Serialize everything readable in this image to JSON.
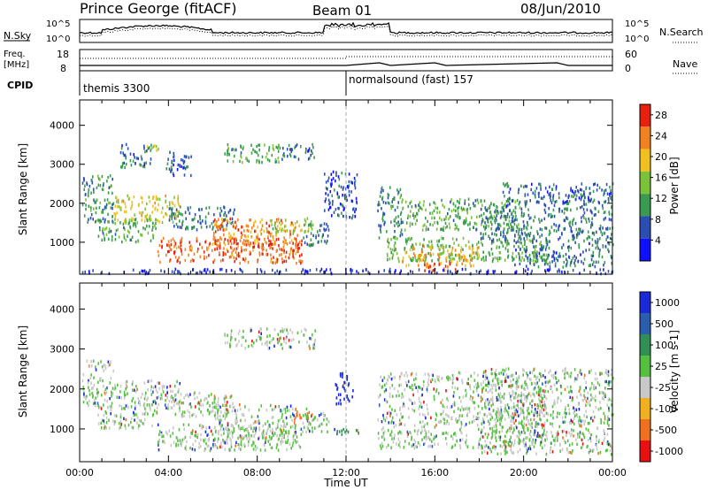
{
  "header": {
    "station": "Prince George (fitACF)",
    "beam": "Beam 01",
    "date": "08/Jun/2010"
  },
  "strip": {
    "nsky_label": "N.Sky",
    "nsky_ticks": [
      "10^5",
      "10^0"
    ],
    "nsky_right_ticks": [
      "10^5",
      "10^0"
    ],
    "nsearch_label": "N.Search",
    "freq_label_1": "Freq.",
    "freq_label_2": "[MHz]",
    "freq_ticks": [
      "18",
      "8"
    ],
    "nave_label": "Nave",
    "nave_ticks": [
      "60",
      "0"
    ],
    "cpid_label": "CPID",
    "cpid_1": "themis 3300",
    "cpid_2": "normalsound (fast) 157",
    "cpid_2_start_hour": 12.0
  },
  "chart_data": [
    {
      "type": "heatmap",
      "name": "power-panel",
      "ylabel": "Slant Range [km]",
      "xlim": [
        0,
        24
      ],
      "ylim": [
        180,
        4650
      ],
      "yticks": [
        1000,
        2000,
        3000,
        4000
      ],
      "colorbar_label": "Power [dB]",
      "colorbar_ticks": [
        "4",
        "8",
        "12",
        "16",
        "20",
        "24",
        "28"
      ],
      "colorbar_colors": [
        "#1010ff",
        "#2a4fb0",
        "#3a9a50",
        "#7ac23a",
        "#f0c020",
        "#f08020",
        "#e82010"
      ],
      "colorbar_range": [
        0,
        30
      ],
      "regions": [
        {
          "t0": 0.1,
          "t1": 1.5,
          "r0": 1500,
          "r1": 2700,
          "value": 10
        },
        {
          "t0": 1.5,
          "t1": 4.5,
          "r0": 1500,
          "r1": 2200,
          "value": 18
        },
        {
          "t0": 0.8,
          "t1": 3.5,
          "r0": 1000,
          "r1": 1600,
          "value": 12
        },
        {
          "t0": 1.8,
          "t1": 3.2,
          "r0": 2900,
          "r1": 3500,
          "value": 8
        },
        {
          "t0": 3.0,
          "t1": 3.6,
          "r0": 3300,
          "r1": 3500,
          "value": 17
        },
        {
          "t0": 3.8,
          "t1": 5.0,
          "r0": 2700,
          "r1": 3300,
          "value": 6
        },
        {
          "t0": 4.0,
          "t1": 7.0,
          "r0": 1300,
          "r1": 1900,
          "value": 9
        },
        {
          "t0": 3.5,
          "t1": 10.0,
          "r0": 450,
          "r1": 1100,
          "value": 25
        },
        {
          "t0": 6.0,
          "t1": 9.8,
          "r0": 700,
          "r1": 1600,
          "value": 23
        },
        {
          "t0": 8.5,
          "t1": 10.5,
          "r0": 1200,
          "r1": 1600,
          "value": 16
        },
        {
          "t0": 10.0,
          "t1": 11.2,
          "r0": 900,
          "r1": 1500,
          "value": 8
        },
        {
          "t0": 6.5,
          "t1": 9.0,
          "r0": 3000,
          "r1": 3500,
          "value": 12
        },
        {
          "t0": 9.0,
          "t1": 10.6,
          "r0": 3100,
          "r1": 3500,
          "value": 8
        },
        {
          "t0": 11.0,
          "t1": 12.5,
          "r0": 1600,
          "r1": 2800,
          "value": 6
        },
        {
          "t0": 13.4,
          "t1": 14.5,
          "r0": 1100,
          "r1": 2400,
          "value": 10
        },
        {
          "t0": 14.5,
          "t1": 20.0,
          "r0": 1300,
          "r1": 2100,
          "value": 12
        },
        {
          "t0": 13.8,
          "t1": 21.0,
          "r0": 500,
          "r1": 1100,
          "value": 13
        },
        {
          "t0": 14.5,
          "t1": 18.0,
          "r0": 350,
          "r1": 900,
          "value": 20
        },
        {
          "t0": 15.5,
          "t1": 17.0,
          "r0": 250,
          "r1": 450,
          "value": 27
        },
        {
          "t0": 18.0,
          "t1": 24.0,
          "r0": 1000,
          "r1": 1900,
          "value": 9
        },
        {
          "t0": 19.5,
          "t1": 24.0,
          "r0": 350,
          "r1": 1000,
          "value": 8
        },
        {
          "t0": 19.0,
          "t1": 24.0,
          "r0": 1900,
          "r1": 2500,
          "value": 7
        },
        {
          "t0": 0.0,
          "t1": 24.0,
          "r0": 180,
          "r1": 300,
          "value": 4
        }
      ]
    },
    {
      "type": "heatmap",
      "name": "velocity-panel",
      "ylabel": "Slant Range [km]",
      "xlabel": "Time UT",
      "xlim": [
        0,
        24
      ],
      "ylim": [
        180,
        4650
      ],
      "yticks": [
        1000,
        2000,
        3000,
        4000
      ],
      "xticks": [
        "00:00",
        "04:00",
        "08:00",
        "12:00",
        "16:00",
        "20:00",
        "00:00"
      ],
      "colorbar_label": "Velocity [m s-1]",
      "colorbar_ticks": [
        "1000",
        "500",
        "100",
        "25",
        "-25",
        "-100",
        "-500",
        "-1000"
      ],
      "colorbar_colors": [
        "#1a2ad8",
        "#2a5fb0",
        "#2f8f55",
        "#55c040",
        "#c8c8c8",
        "#f0b020",
        "#f07020",
        "#e81010"
      ],
      "regions": [
        {
          "t0": 0.1,
          "t1": 1.5,
          "r0": 1500,
          "r1": 2700,
          "value": 0
        },
        {
          "t0": 1.5,
          "t1": 4.5,
          "r0": 1500,
          "r1": 2200,
          "value": 0
        },
        {
          "t0": 0.8,
          "t1": 3.5,
          "r0": 1000,
          "r1": 1600,
          "value": 0
        },
        {
          "t0": 4.0,
          "t1": 7.0,
          "r0": 1300,
          "r1": 1900,
          "value": 0
        },
        {
          "t0": 3.5,
          "t1": 10.0,
          "r0": 450,
          "r1": 1100,
          "value": 0
        },
        {
          "t0": 6.0,
          "t1": 9.8,
          "r0": 700,
          "r1": 1600,
          "value": 0
        },
        {
          "t0": 9.6,
          "t1": 10.5,
          "r0": 1100,
          "r1": 1450,
          "value": -250
        },
        {
          "t0": 10.0,
          "t1": 11.2,
          "r0": 900,
          "r1": 1500,
          "value": 0
        },
        {
          "t0": 11.4,
          "t1": 12.6,
          "r0": 800,
          "r1": 1000,
          "value": 80
        },
        {
          "t0": 11.5,
          "t1": 12.3,
          "r0": 1600,
          "r1": 2400,
          "value": 600
        },
        {
          "t0": 6.5,
          "t1": 10.6,
          "r0": 3000,
          "r1": 3500,
          "value": 0
        },
        {
          "t0": 13.4,
          "t1": 21.0,
          "r0": 500,
          "r1": 2400,
          "value": 0
        },
        {
          "t0": 18.0,
          "t1": 24.0,
          "r0": 350,
          "r1": 2500,
          "value": 0
        }
      ]
    }
  ]
}
